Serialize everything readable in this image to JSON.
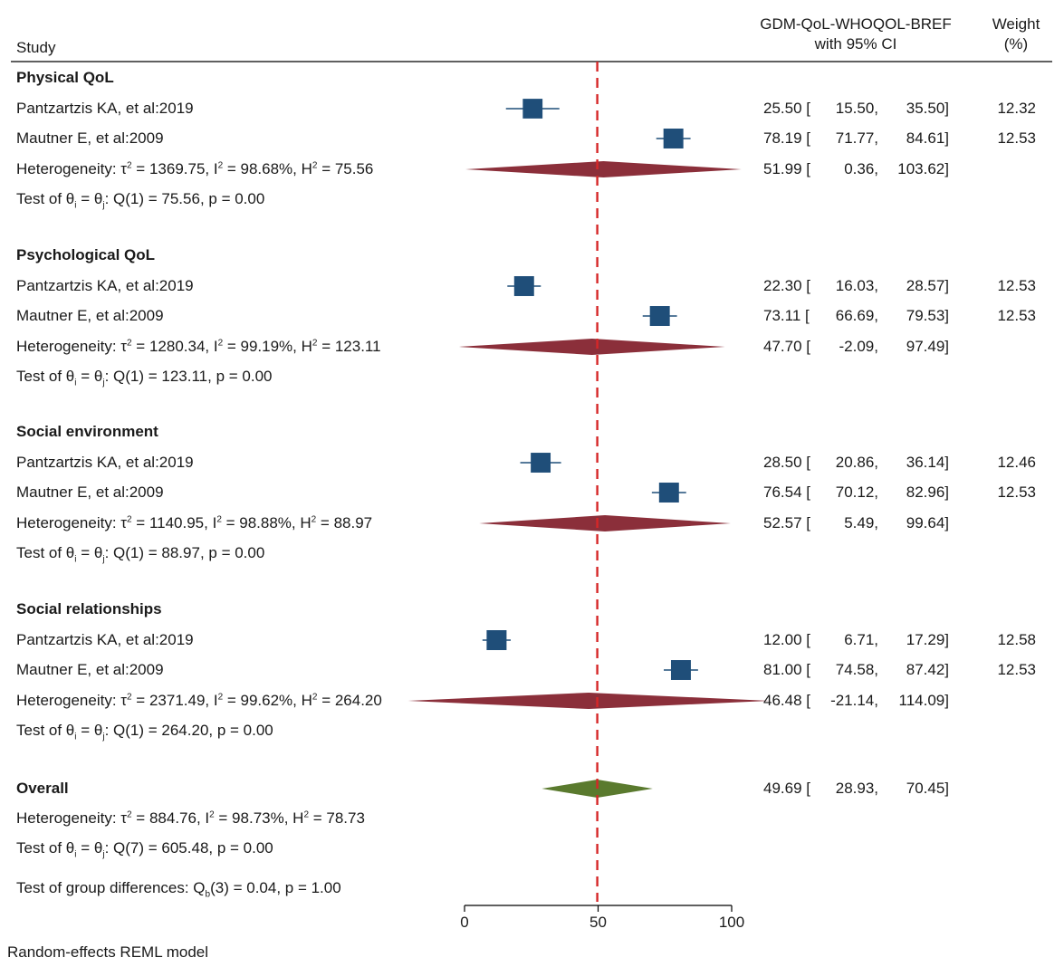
{
  "header": {
    "study_label": "Study",
    "effect_label_line1": "GDM-QoL-WHOQOL-BREF",
    "effect_label_line2": "with 95% CI",
    "weight_label_line1": "Weight",
    "weight_label_line2": "(%)"
  },
  "footer": {
    "model_note": "Random-effects REML model",
    "group_test": "Test of group differences: Q_b(3) = 0.04, p = 1.00"
  },
  "colors": {
    "study_marker": "#1f4e79",
    "subgroup_diamond": "#8b2f3a",
    "overall_diamond": "#5a7a2e",
    "reference_line": "#d62728"
  },
  "chart_data": {
    "type": "forest",
    "xlim": [
      0,
      100
    ],
    "x_ticks": [
      0,
      50,
      100
    ],
    "reference_line": 49.69,
    "groups": [
      {
        "name": "Physical QoL",
        "studies": [
          {
            "label": "Pantzartzis KA, et al:2019",
            "est": 25.5,
            "lo": 15.5,
            "hi": 35.5,
            "weight": 12.32
          },
          {
            "label": "Mautner E, et al:2009",
            "est": 78.19,
            "lo": 71.77,
            "hi": 84.61,
            "weight": 12.53
          }
        ],
        "pooled": {
          "est": 51.99,
          "lo": 0.36,
          "hi": 103.62
        },
        "heterogeneity": {
          "tau2": "1369.75",
          "i2": "98.68%",
          "h2": "75.56"
        },
        "test": {
          "df": "1",
          "q": "75.56",
          "p": "0.00"
        }
      },
      {
        "name": "Psychological QoL",
        "studies": [
          {
            "label": "Pantzartzis KA, et al:2019",
            "est": 22.3,
            "lo": 16.03,
            "hi": 28.57,
            "weight": 12.53
          },
          {
            "label": "Mautner E, et al:2009",
            "est": 73.11,
            "lo": 66.69,
            "hi": 79.53,
            "weight": 12.53
          }
        ],
        "pooled": {
          "est": 47.7,
          "lo": -2.09,
          "hi": 97.49
        },
        "heterogeneity": {
          "tau2": "1280.34",
          "i2": "99.19%",
          "h2": "123.11"
        },
        "test": {
          "df": "1",
          "q": "123.11",
          "p": "0.00"
        }
      },
      {
        "name": "Social environment",
        "studies": [
          {
            "label": "Pantzartzis KA, et al:2019",
            "est": 28.5,
            "lo": 20.86,
            "hi": 36.14,
            "weight": 12.46
          },
          {
            "label": "Mautner E, et al:2009",
            "est": 76.54,
            "lo": 70.12,
            "hi": 82.96,
            "weight": 12.53
          }
        ],
        "pooled": {
          "est": 52.57,
          "lo": 5.49,
          "hi": 99.64
        },
        "heterogeneity": {
          "tau2": "1140.95",
          "i2": "98.88%",
          "h2": "88.97"
        },
        "test": {
          "df": "1",
          "q": "88.97",
          "p": "0.00"
        }
      },
      {
        "name": "Social relationships",
        "studies": [
          {
            "label": "Pantzartzis KA, et al:2019",
            "est": 12.0,
            "lo": 6.71,
            "hi": 17.29,
            "weight": 12.58
          },
          {
            "label": "Mautner E, et al:2009",
            "est": 81.0,
            "lo": 74.58,
            "hi": 87.42,
            "weight": 12.53
          }
        ],
        "pooled": {
          "est": 46.48,
          "lo": -21.14,
          "hi": 114.09
        },
        "heterogeneity": {
          "tau2": "2371.49",
          "i2": "99.62%",
          "h2": "264.20"
        },
        "test": {
          "df": "1",
          "q": "264.20",
          "p": "0.00"
        }
      }
    ],
    "overall": {
      "name": "Overall",
      "est": 49.69,
      "lo": 28.93,
      "hi": 70.45,
      "heterogeneity": {
        "tau2": "884.76",
        "i2": "98.73%",
        "h2": "78.73"
      },
      "test": {
        "df": "7",
        "q": "605.48",
        "p": "0.00"
      }
    }
  }
}
